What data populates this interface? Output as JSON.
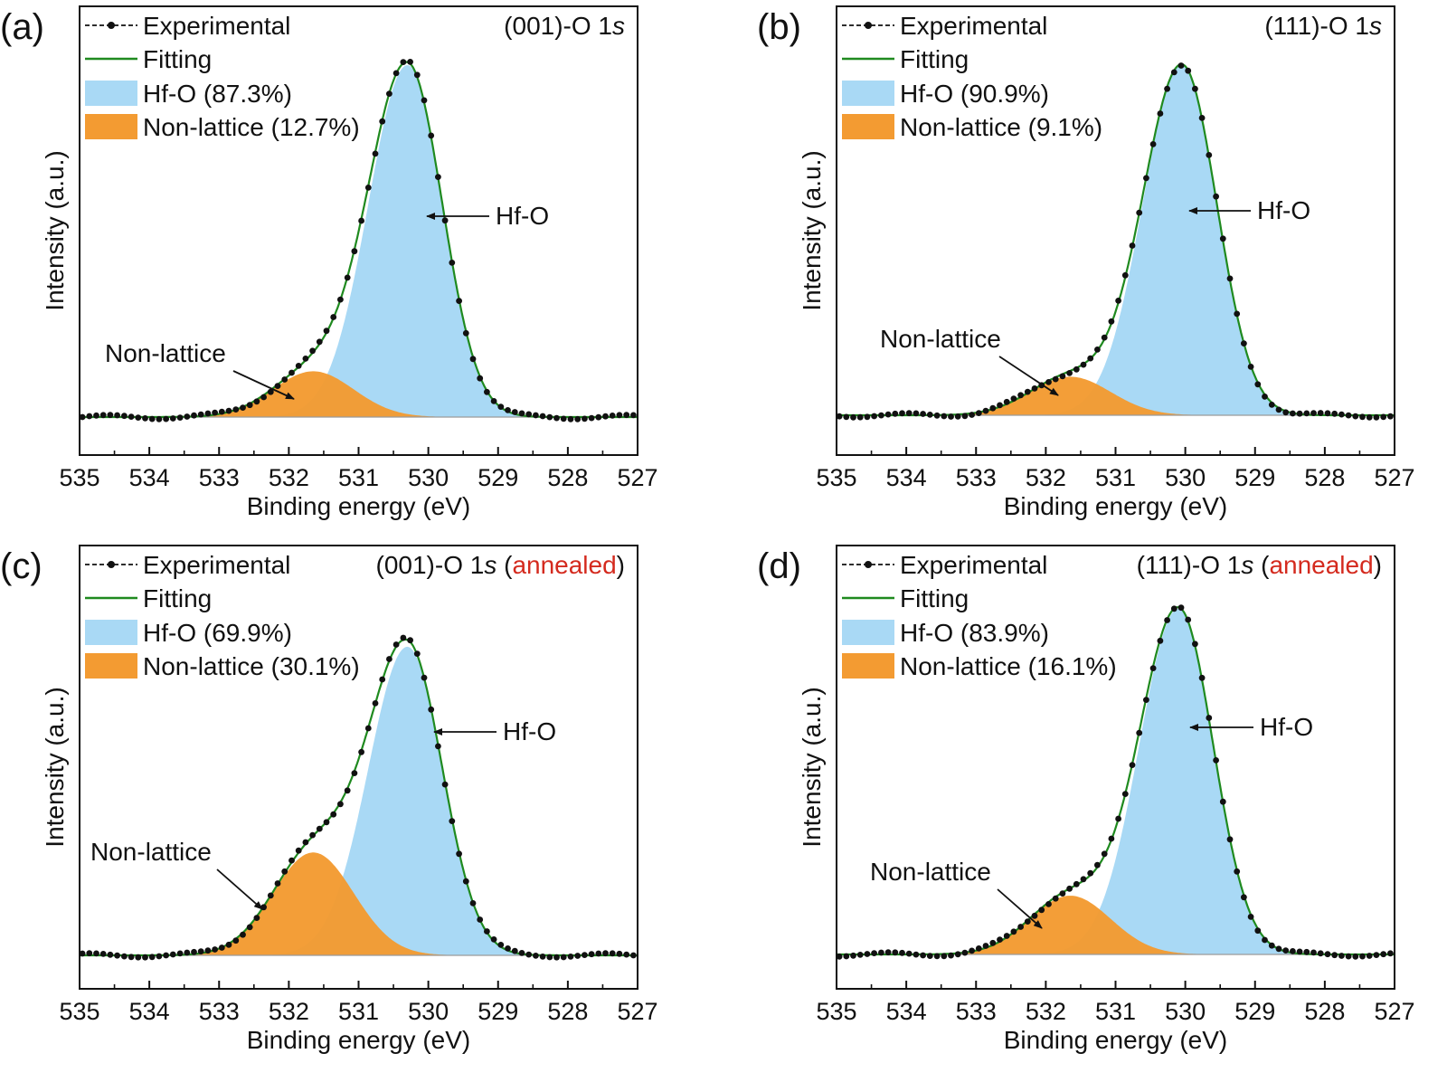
{
  "chart_data": [
    {
      "type": "area",
      "panel_label": "(a)",
      "title": "(001)-O 1s",
      "title_parts": [
        "(001)-O 1",
        "s",
        "",
        ""
      ],
      "xlabel": "Binding energy (eV)",
      "ylabel": "Intensity (a.u.)",
      "xlim": [
        535,
        527
      ],
      "xticks": [
        "535",
        "534",
        "533",
        "532",
        "531",
        "530",
        "529",
        "528",
        "527"
      ],
      "legend_position": "top-left",
      "legend": [
        "Experimental",
        "Fitting",
        "Hf-O (87.3%)",
        "Non-lattice (12.7%)"
      ],
      "annotations": [
        "Hf-O",
        "Non-lattice"
      ],
      "peaks": [
        {
          "name": "Hf-O",
          "center_eV": 530.3,
          "height": 1.0,
          "share": "87.3%",
          "color": "#a9d9f5"
        },
        {
          "name": "Non-lattice",
          "center_eV": 531.65,
          "height": 0.13,
          "share": "12.7%",
          "color": "#f39b32"
        }
      ],
      "series": [
        {
          "name": "Experimental",
          "style": "black dots with dashed line",
          "color": "#111111"
        },
        {
          "name": "Fitting",
          "style": "solid line",
          "color": "#1f8a1f"
        }
      ]
    },
    {
      "type": "area",
      "panel_label": "(b)",
      "title": "(111)-O 1s",
      "title_parts": [
        "(111)-O 1",
        "s",
        "",
        ""
      ],
      "xlabel": "Binding energy (eV)",
      "ylabel": "Intensity (a.u.)",
      "xlim": [
        535,
        527
      ],
      "xticks": [
        "535",
        "534",
        "533",
        "532",
        "531",
        "530",
        "529",
        "528",
        "527"
      ],
      "legend_position": "top-left",
      "legend": [
        "Experimental",
        "Fitting",
        "Hf-O (90.9%)",
        "Non-lattice (9.1%)"
      ],
      "annotations": [
        "Hf-O",
        "Non-lattice"
      ],
      "peaks": [
        {
          "name": "Hf-O",
          "center_eV": 530.05,
          "height": 1.0,
          "share": "90.9%",
          "color": "#a9d9f5"
        },
        {
          "name": "Non-lattice",
          "center_eV": 531.65,
          "height": 0.11,
          "share": "9.1%",
          "color": "#f39b32"
        }
      ],
      "series": [
        {
          "name": "Experimental",
          "style": "black dots with dashed line",
          "color": "#111111"
        },
        {
          "name": "Fitting",
          "style": "solid line",
          "color": "#1f8a1f"
        }
      ]
    },
    {
      "type": "area",
      "panel_label": "(c)",
      "title": "(001)-O 1s (annealed)",
      "title_parts": [
        "(001)-O 1",
        "s",
        " (",
        "annealed",
        ")"
      ],
      "xlabel": "Binding energy (eV)",
      "ylabel": "Intensity (a.u.)",
      "xlim": [
        535,
        527
      ],
      "xticks": [
        "535",
        "534",
        "533",
        "532",
        "531",
        "530",
        "529",
        "528",
        "527"
      ],
      "legend_position": "top-left",
      "legend": [
        "Experimental",
        "Fitting",
        "Hf-O (69.9%)",
        "Non-lattice (30.1%)"
      ],
      "annotations": [
        "Hf-O",
        "Non-lattice"
      ],
      "peaks": [
        {
          "name": "Hf-O",
          "center_eV": 530.3,
          "height": 0.9,
          "share": "69.9%",
          "color": "#a9d9f5"
        },
        {
          "name": "Non-lattice",
          "center_eV": 531.65,
          "height": 0.3,
          "share": "30.1%",
          "color": "#f39b32"
        }
      ],
      "series": [
        {
          "name": "Experimental",
          "style": "black dots with dashed line",
          "color": "#111111"
        },
        {
          "name": "Fitting",
          "style": "solid line",
          "color": "#1f8a1f"
        }
      ],
      "highlight_color": "#d42a1e"
    },
    {
      "type": "area",
      "panel_label": "(d)",
      "title": "(111)-O 1s (annealed)",
      "title_parts": [
        "(111)-O 1",
        "s",
        " (",
        "annealed",
        ")"
      ],
      "xlabel": "Binding energy (eV)",
      "ylabel": "Intensity (a.u.)",
      "xlim": [
        535,
        527
      ],
      "xticks": [
        "535",
        "534",
        "533",
        "532",
        "531",
        "530",
        "529",
        "528",
        "527"
      ],
      "legend_position": "top-left",
      "legend": [
        "Experimental",
        "Fitting",
        "Hf-O (83.9%)",
        "Non-lattice (16.1%)"
      ],
      "annotations": [
        "Hf-O",
        "Non-lattice"
      ],
      "peaks": [
        {
          "name": "Hf-O",
          "center_eV": 530.1,
          "height": 1.0,
          "share": "83.9%",
          "color": "#a9d9f5"
        },
        {
          "name": "Non-lattice",
          "center_eV": 531.65,
          "height": 0.17,
          "share": "16.1%",
          "color": "#f39b32"
        }
      ],
      "series": [
        {
          "name": "Experimental",
          "style": "black dots with dashed line",
          "color": "#111111"
        },
        {
          "name": "Fitting",
          "style": "solid line",
          "color": "#1f8a1f"
        }
      ],
      "highlight_color": "#d42a1e"
    }
  ]
}
